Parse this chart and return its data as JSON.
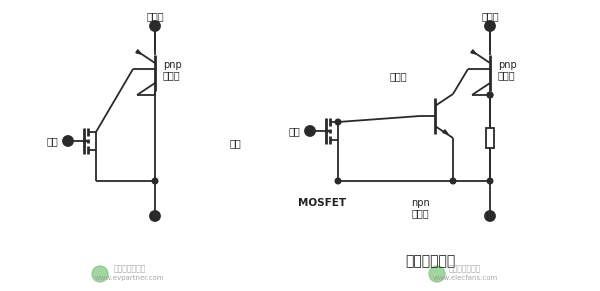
{
  "fig_width": 6.0,
  "fig_height": 2.91,
  "dpi": 100,
  "bg_color": "#ffffff",
  "line_color": "#2a2a2a",
  "text_color": "#222222",
  "left_circuit": {
    "title": "集電極",
    "gate_label": "門極",
    "gate_label2": "門極",
    "pnp_label1": "pnp",
    "pnp_label2": "晶體管"
  },
  "right_circuit": {
    "title": "集電極",
    "gate_label": "門極",
    "mosfet_label": "MOSFET",
    "npn_label1": "npn",
    "npn_label2": "晶體管",
    "pnp_label1": "pnp",
    "pnp_label2": "晶體管",
    "scr_label": "可控硅",
    "bottom_label": "實際等效電路"
  },
  "watermark1_line1": "電動汽車資源網",
  "watermark1_line2": "www.evpartner.com",
  "watermark2_line1": "電動汽車資源網",
  "watermark2_line2": "www.elecfans.com"
}
